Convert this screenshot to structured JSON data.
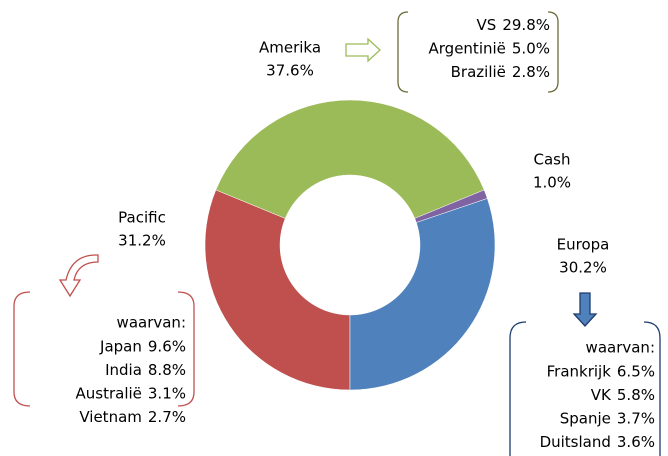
{
  "chart_data": {
    "type": "donut",
    "categories": [
      "Pacific",
      "Amerika",
      "Cash",
      "Europa"
    ],
    "values": [
      31.2,
      37.6,
      1.0,
      30.2
    ],
    "value_labels": [
      "31.2%",
      "37.6%",
      "1.0%",
      "30.2%"
    ],
    "colors": [
      "#c0504d",
      "#9bbb59",
      "#8064a2",
      "#4f81bd"
    ],
    "breakdowns": [
      {
        "category": "Amerika",
        "items": [
          {
            "name": "VS",
            "value": 29.8,
            "value_label": "29.8%"
          },
          {
            "name": "Argentinië",
            "value": 5.0,
            "value_label": "5.0%"
          },
          {
            "name": "Brazilië",
            "value": 2.8,
            "value_label": "2.8%"
          }
        ]
      },
      {
        "category": "Pacific",
        "header": "waarvan:",
        "items": [
          {
            "name": "Japan",
            "value": 9.6,
            "value_label": "9.6%"
          },
          {
            "name": "India",
            "value": 8.8,
            "value_label": "8.8%"
          },
          {
            "name": "Australië",
            "value": 3.1,
            "value_label": "3.1%"
          },
          {
            "name": "Vietnam",
            "value": 2.7,
            "value_label": "2.7%"
          }
        ]
      },
      {
        "category": "Europa",
        "header": "waarvan:",
        "items": [
          {
            "name": "Frankrijk",
            "value": 6.5,
            "value_label": "6.5%"
          },
          {
            "name": "VK",
            "value": 5.8,
            "value_label": "5.8%"
          },
          {
            "name": "Spanje",
            "value": 3.7,
            "value_label": "3.7%"
          },
          {
            "name": "Duitsland",
            "value": 3.6,
            "value_label": "3.6%"
          }
        ]
      }
    ]
  }
}
